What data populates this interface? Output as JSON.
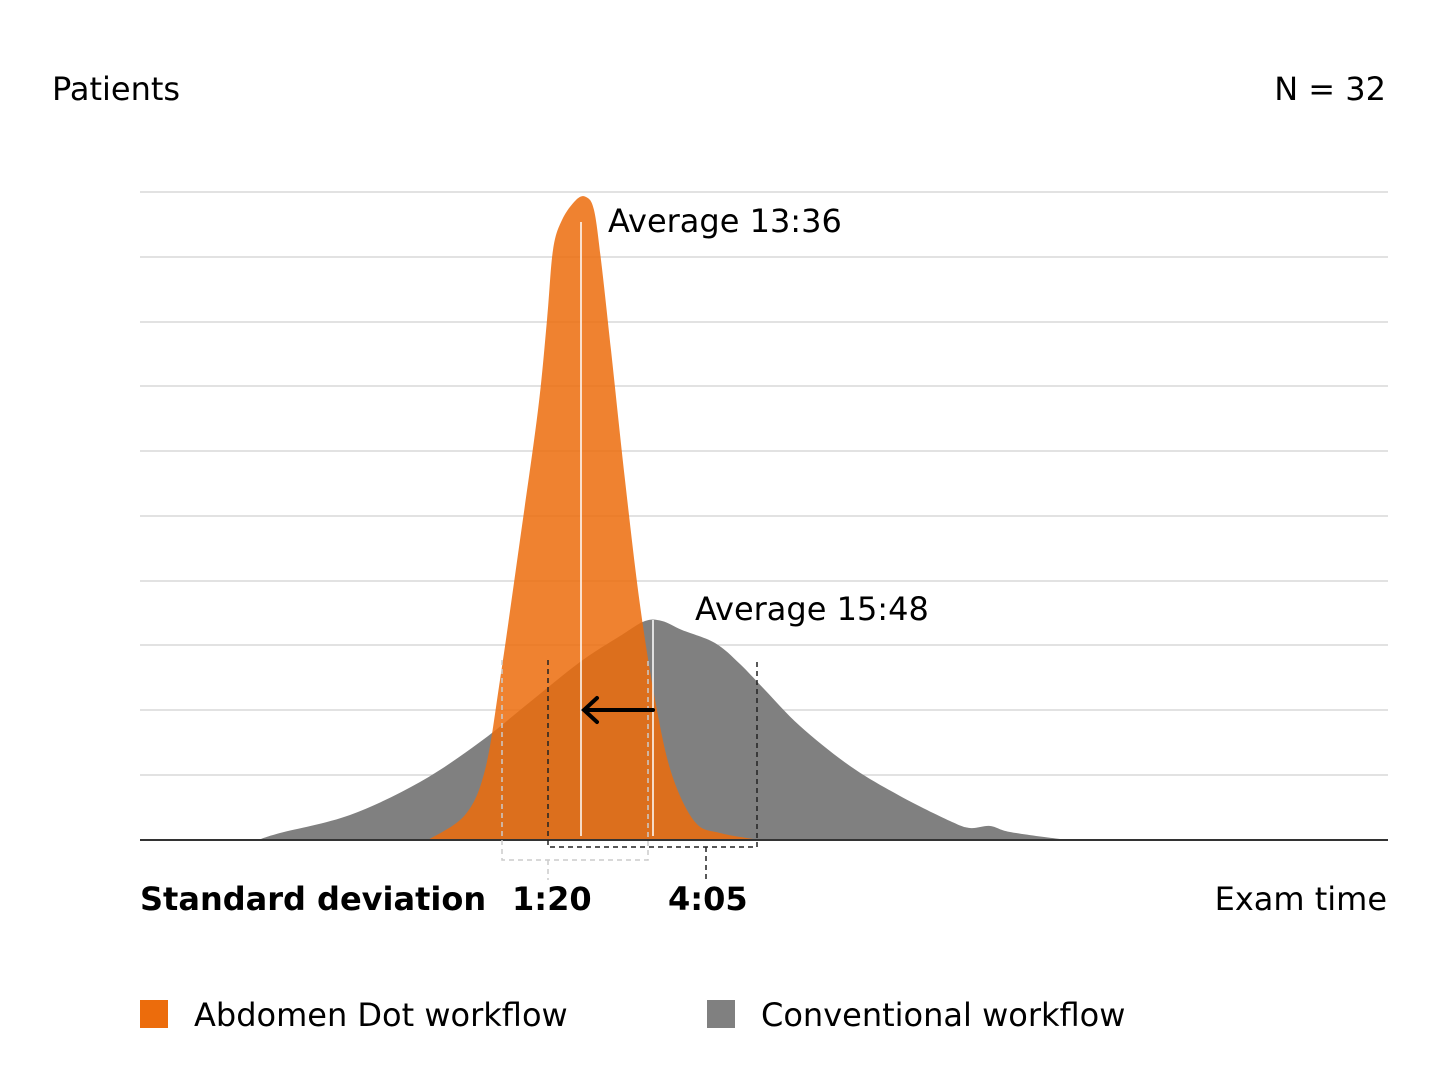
{
  "chart_data": {
    "type": "area",
    "ylabel": "Patients",
    "xlabel": "Exam time",
    "annotation_n": "N = 32",
    "grid": true,
    "legend_placement": "bottom",
    "std_label": "Standard deviation",
    "series": [
      {
        "name": "Abdomen Dot workflow",
        "color": "#EC6C0C",
        "average": "13:36",
        "average_label": "Average 13:36",
        "std": "1:20"
      },
      {
        "name": "Conventional workflow",
        "color": "#808080",
        "average": "15:48",
        "average_label": "Average 15:48",
        "std": "4:05"
      }
    ]
  }
}
